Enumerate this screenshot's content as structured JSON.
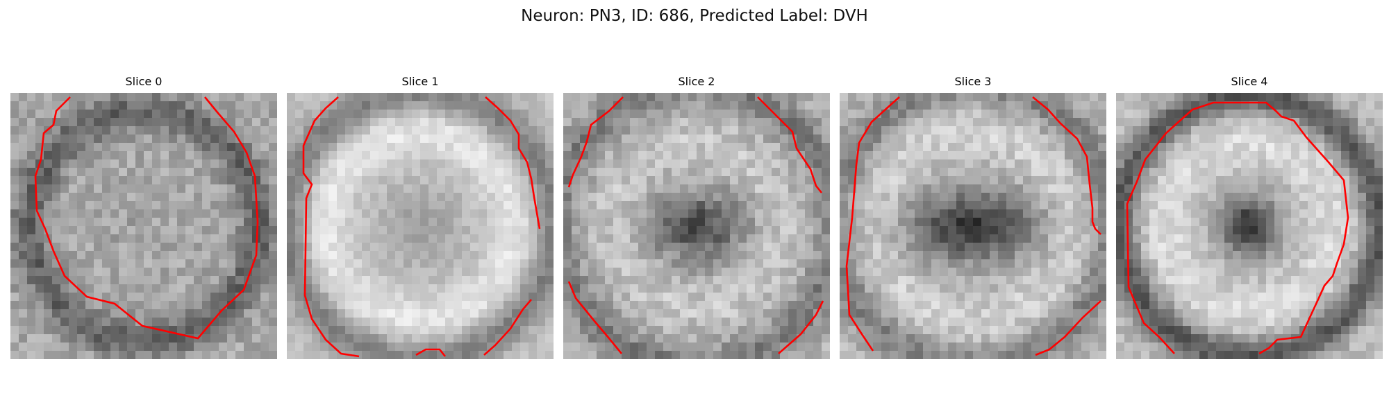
{
  "figure": {
    "title": "Neuron: PN3, ID: 686, Predicted Label: DVH"
  },
  "panels": [
    {
      "title": "Slice 0"
    },
    {
      "title": "Slice 1"
    },
    {
      "title": "Slice 2"
    },
    {
      "title": "Slice 3"
    },
    {
      "title": "Slice 4"
    }
  ],
  "colors": {
    "contour": "#ff0000",
    "background": "#ffffff"
  }
}
